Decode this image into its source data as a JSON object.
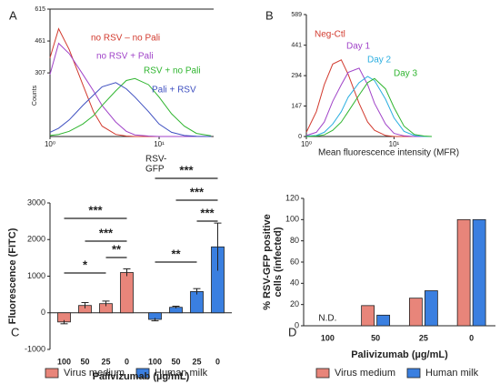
{
  "chart_data": [
    {
      "type": "line",
      "panel": "A",
      "log_x": true,
      "x": [
        1,
        1.2,
        1.5,
        2,
        2.5,
        3,
        4,
        5,
        6,
        8,
        10,
        13,
        17,
        22,
        30
      ],
      "xlim": [
        1,
        31.6
      ],
      "xticks": [
        {
          "value": 1,
          "label": "10⁰"
        },
        {
          "value": 10,
          "label": "10¹"
        }
      ],
      "ylim": [
        0,
        615
      ],
      "yticks": [
        307,
        461,
        615
      ],
      "y_label": "Counts",
      "x_label": [
        "RSV-",
        "GFP"
      ],
      "series": [
        {
          "name": "no RSV – no Pali",
          "color": "#d23a2e",
          "values": [
            380,
            520,
            420,
            250,
            120,
            50,
            10,
            2,
            0,
            0,
            0,
            0,
            0,
            0,
            0
          ]
        },
        {
          "name": "no RSV + Pali",
          "color": "#a043c8",
          "values": [
            300,
            450,
            400,
            300,
            220,
            150,
            70,
            25,
            8,
            2,
            0,
            0,
            0,
            0,
            0
          ]
        },
        {
          "name": "RSV + no Pali",
          "color": "#2fb52f",
          "values": [
            5,
            10,
            25,
            60,
            100,
            150,
            220,
            270,
            280,
            250,
            190,
            110,
            50,
            15,
            3
          ]
        },
        {
          "name": "Pali + RSV",
          "color": "#3e4fc0",
          "values": [
            20,
            40,
            80,
            150,
            200,
            240,
            260,
            230,
            190,
            120,
            60,
            20,
            5,
            1,
            0
          ]
        }
      ]
    },
    {
      "type": "line",
      "panel": "B",
      "log_x": true,
      "x": [
        1,
        1.3,
        1.6,
        2,
        2.5,
        3,
        4,
        5,
        6,
        8,
        10,
        13,
        17,
        22,
        27
      ],
      "xlim": [
        1,
        27
      ],
      "xticks": [
        {
          "value": 1,
          "label": "10⁰"
        },
        {
          "value": 10,
          "label": "10¹"
        }
      ],
      "ylim": [
        0,
        589
      ],
      "yticks": [
        0,
        147,
        294,
        441,
        589
      ],
      "x_label": [
        "Mean fluorescence intensity (MFR)"
      ],
      "series": [
        {
          "name": "Neg-Ctl",
          "color": "#d23a2e",
          "values": [
            20,
            120,
            250,
            350,
            370,
            300,
            160,
            70,
            30,
            5,
            0,
            0,
            0,
            0,
            0
          ]
        },
        {
          "name": "Day 1",
          "color": "#a043c8",
          "values": [
            5,
            20,
            70,
            170,
            250,
            310,
            330,
            250,
            160,
            60,
            15,
            3,
            0,
            0,
            0
          ]
        },
        {
          "name": "Day 2",
          "color": "#2aaee0",
          "values": [
            2,
            5,
            20,
            60,
            120,
            190,
            260,
            290,
            270,
            180,
            90,
            25,
            5,
            0,
            0
          ]
        },
        {
          "name": "Day 3",
          "color": "#2fb52f",
          "values": [
            0,
            2,
            8,
            30,
            70,
            120,
            200,
            260,
            280,
            230,
            140,
            50,
            10,
            2,
            0
          ]
        }
      ]
    },
    {
      "type": "bar",
      "panel": "C",
      "grouping": "by-series",
      "categories": [
        "100",
        "50",
        "25",
        "0"
      ],
      "ylim": [
        -1000,
        3000
      ],
      "yticks": [
        -1000,
        0,
        1000,
        2000,
        3000
      ],
      "y_label": [
        "Fluorescence (FITC)"
      ],
      "x_label": "Palivizumab (µg/mL)",
      "series": [
        {
          "name": "Virus medium",
          "color": "#e8857a",
          "values": [
            -250,
            200,
            250,
            1100
          ],
          "errors": [
            50,
            80,
            70,
            100
          ]
        },
        {
          "name": "Human milk",
          "color": "#3a7fe0",
          "values": [
            -180,
            150,
            580,
            1800
          ],
          "errors": [
            40,
            30,
            80,
            650
          ]
        }
      ],
      "annotations": [
        {
          "text": "*",
          "series": 0,
          "from": 0,
          "to": 2
        },
        {
          "text": "**",
          "series": 0,
          "from": 2,
          "to": 3
        },
        {
          "text": "***",
          "series": 0,
          "from": 1,
          "to": 3
        },
        {
          "text": "***",
          "series": 0,
          "from": 0,
          "to": 3
        },
        {
          "text": "**",
          "series": 1,
          "from": 0,
          "to": 2
        },
        {
          "text": "***",
          "series": 1,
          "from": 2,
          "to": 3
        },
        {
          "text": "***",
          "series": 1,
          "from": 1,
          "to": 3
        },
        {
          "text": "***",
          "series": 1,
          "from": 0,
          "to": 3
        }
      ]
    },
    {
      "type": "bar",
      "panel": "D",
      "grouping": "by-category",
      "categories": [
        "100",
        "50",
        "25",
        "0"
      ],
      "ylim": [
        0,
        120
      ],
      "yticks": [
        0,
        20,
        40,
        60,
        80,
        100,
        120
      ],
      "y_label": [
        "% RSV-GFP positive",
        "cells (infected)"
      ],
      "x_label": "Palivizumab (µg/mL)",
      "series": [
        {
          "name": "Virus medium",
          "color": "#e8857a",
          "values": [
            null,
            19,
            26,
            100
          ]
        },
        {
          "name": "Human milk",
          "color": "#3a7fe0",
          "values": [
            null,
            10,
            33,
            100
          ]
        }
      ],
      "annotations": [
        {
          "text": "N.D.",
          "category": 0
        }
      ]
    }
  ]
}
